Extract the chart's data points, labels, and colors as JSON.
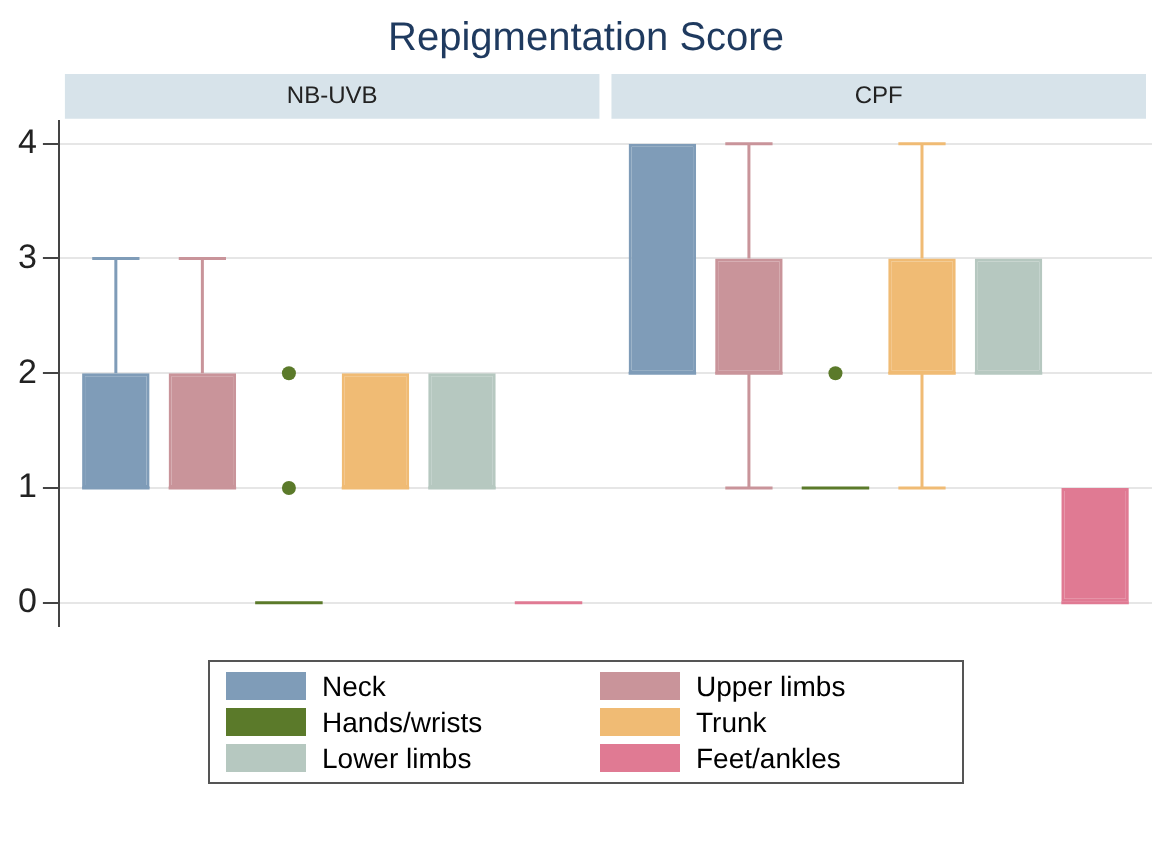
{
  "chart_data": {
    "type": "box",
    "title": "Repigmentation Score",
    "categories": [
      "NB-UVB",
      "CPF"
    ],
    "ylim": [
      -0.2,
      4.2
    ],
    "yticks": [
      0,
      1,
      2,
      3,
      4
    ],
    "grid": "y",
    "legend": "bottom",
    "series": [
      {
        "name": "Neck",
        "color": "#7f9cb8",
        "boxes": [
          {
            "low": 1,
            "q1": 1,
            "median": 1,
            "q3": 2,
            "high": 3
          },
          {
            "low": 2,
            "q1": 2,
            "median": 2,
            "q3": 4,
            "high": 4
          }
        ]
      },
      {
        "name": "Upper limbs",
        "color": "#c9949a",
        "boxes": [
          {
            "low": 1,
            "q1": 1,
            "median": 1,
            "q3": 2,
            "high": 3
          },
          {
            "low": 1,
            "q1": 2,
            "median": 2,
            "q3": 3,
            "high": 4
          }
        ]
      },
      {
        "name": "Hands/wrists",
        "color": "#5b7a2a",
        "boxes": [
          {
            "low": 0,
            "q1": 0,
            "median": 0,
            "q3": 0,
            "high": 0,
            "outliers": [
              1,
              2
            ]
          },
          {
            "low": 1,
            "q1": 1,
            "median": 1,
            "q3": 1,
            "high": 1,
            "outliers": [
              2
            ]
          }
        ]
      },
      {
        "name": "Trunk",
        "color": "#f0bb74",
        "boxes": [
          {
            "low": 1,
            "q1": 1,
            "median": 1,
            "q3": 2,
            "high": 2
          },
          {
            "low": 1,
            "q1": 2,
            "median": 2,
            "q3": 3,
            "high": 4
          }
        ]
      },
      {
        "name": "Lower limbs",
        "color": "#b6c8c0",
        "boxes": [
          {
            "low": 1,
            "q1": 1,
            "median": 1,
            "q3": 2,
            "high": 2
          },
          {
            "low": 2,
            "q1": 2,
            "median": 2,
            "q3": 3,
            "high": 3
          }
        ]
      },
      {
        "name": "Feet/ankles",
        "color": "#e07a93",
        "boxes": [
          {
            "low": 0,
            "q1": 0,
            "median": 0,
            "q3": 0,
            "high": 0
          },
          {
            "low": 0,
            "q1": 0,
            "median": 0,
            "q3": 1,
            "high": 1
          }
        ]
      }
    ]
  }
}
